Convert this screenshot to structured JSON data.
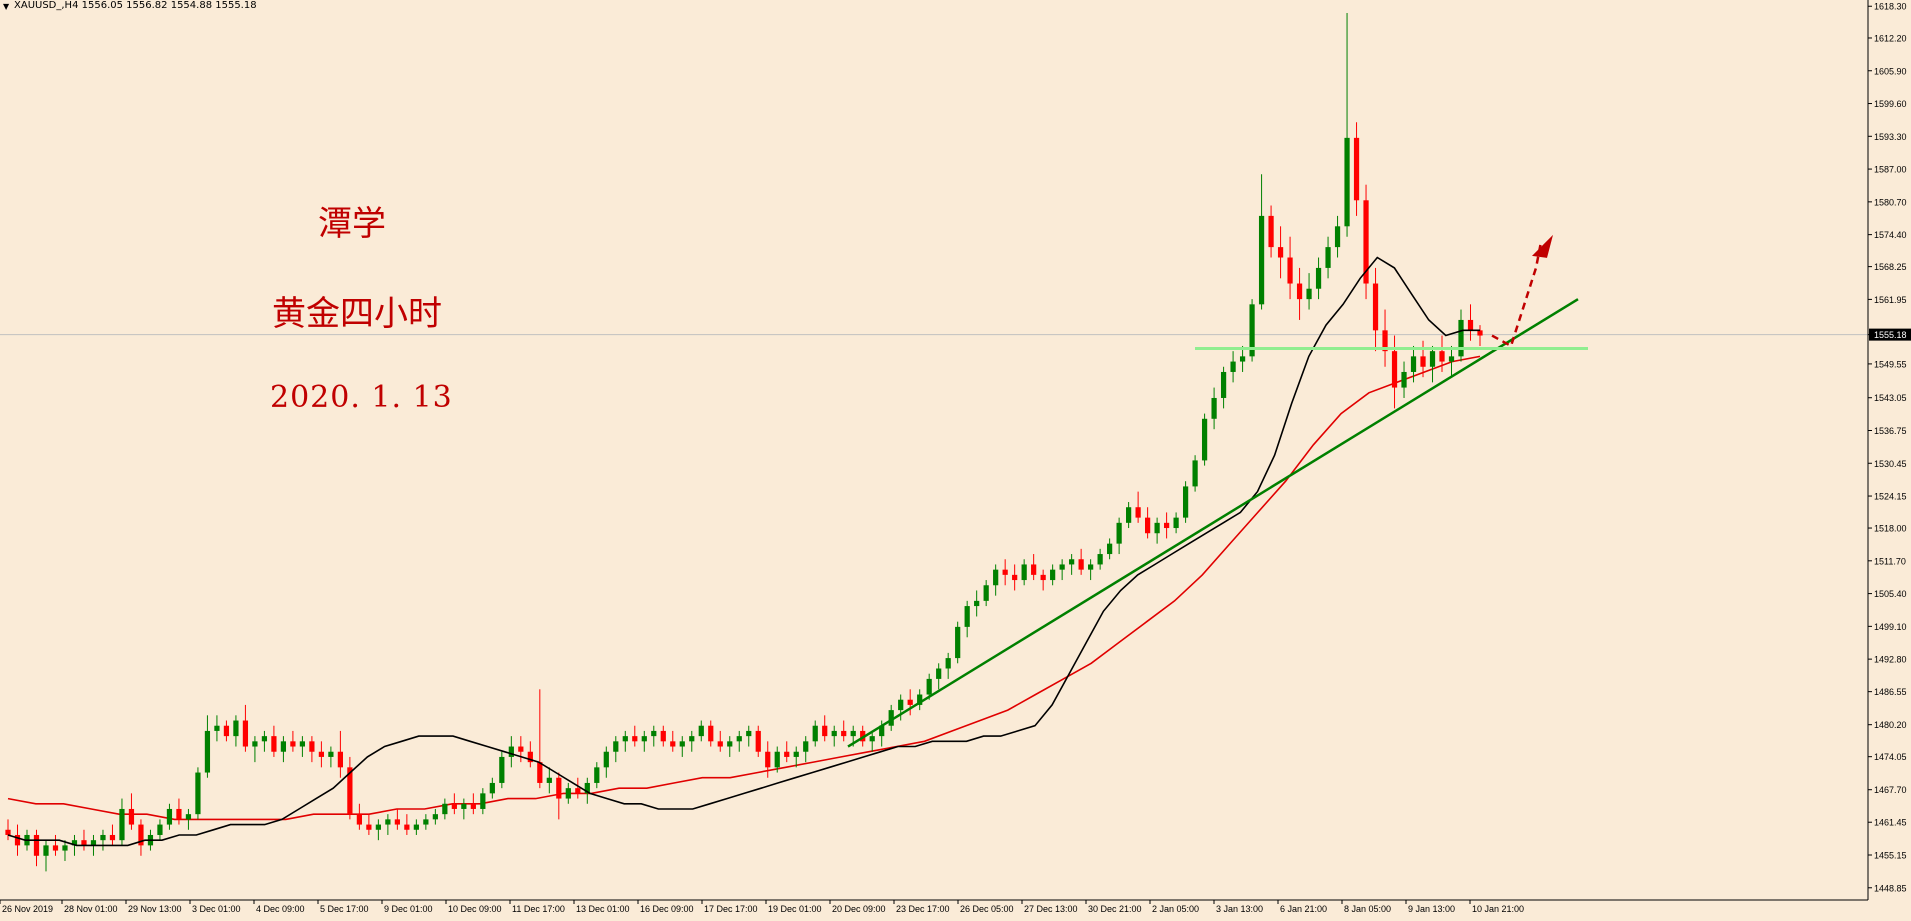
{
  "header": {
    "symbol": "XAUUSD_,H4",
    "ohlc": "1556.05 1556.82 1554.88 1555.18"
  },
  "annotations": {
    "author": "潭学",
    "subtitle": "黄金四小时",
    "date": "2020. 1. 13"
  },
  "colors": {
    "background": "#faebd7",
    "bull": "#008000",
    "bear": "#ff0000",
    "ma_fast": "#000000",
    "ma_slow": "#e00000",
    "trendline": "#008000",
    "support": "#90ee90",
    "arrow": "#c00000",
    "price_line": "#c0c0c0"
  },
  "chart_data": {
    "type": "candlestick",
    "symbol": "XAUUSD",
    "timeframe": "H4",
    "ylim": [
      1446.5,
      1619.5
    ],
    "y_ticks": [
      "1618.30",
      "1612.20",
      "1605.90",
      "1599.60",
      "1593.30",
      "1587.00",
      "1580.70",
      "1574.40",
      "1568.25",
      "1561.95",
      "1555.18",
      "1549.55",
      "1543.05",
      "1536.75",
      "1530.45",
      "1524.15",
      "1518.00",
      "1511.70",
      "1505.40",
      "1499.10",
      "1492.80",
      "1486.55",
      "1480.20",
      "1474.05",
      "1467.70",
      "1461.45",
      "1455.15",
      "1448.85"
    ],
    "current_price": "1555.18",
    "x_labels": [
      "26 Nov 2019",
      "28 Nov 01:00",
      "29 Nov 13:00",
      "3 Dec 01:00",
      "4 Dec 09:00",
      "5 Dec 17:00",
      "9 Dec 01:00",
      "10 Dec 09:00",
      "11 Dec 17:00",
      "13 Dec 01:00",
      "16 Dec 09:00",
      "17 Dec 17:00",
      "19 Dec 01:00",
      "20 Dec 09:00",
      "23 Dec 17:00",
      "26 Dec 05:00",
      "27 Dec 13:00",
      "30 Dec 21:00",
      "2 Jan 05:00",
      "3 Jan 13:00",
      "6 Jan 21:00",
      "8 Jan 05:00",
      "9 Jan 13:00",
      "10 Jan 21:00"
    ],
    "candles": [
      [
        1460,
        1462,
        1458,
        1459
      ],
      [
        1459,
        1461,
        1455,
        1457
      ],
      [
        1457,
        1460,
        1456,
        1459
      ],
      [
        1459,
        1460,
        1453,
        1455
      ],
      [
        1455,
        1458,
        1452,
        1457
      ],
      [
        1457,
        1459,
        1455,
        1456
      ],
      [
        1456,
        1458,
        1454,
        1457
      ],
      [
        1457,
        1459,
        1455,
        1458
      ],
      [
        1458,
        1460,
        1456,
        1457
      ],
      [
        1457,
        1459,
        1455,
        1458
      ],
      [
        1458,
        1460,
        1456,
        1459
      ],
      [
        1459,
        1461,
        1457,
        1458
      ],
      [
        1458,
        1466,
        1457,
        1464
      ],
      [
        1464,
        1467,
        1460,
        1461
      ],
      [
        1461,
        1462,
        1455,
        1457
      ],
      [
        1457,
        1460,
        1456,
        1459
      ],
      [
        1459,
        1462,
        1458,
        1461
      ],
      [
        1461,
        1465,
        1460,
        1464
      ],
      [
        1464,
        1466,
        1461,
        1462
      ],
      [
        1462,
        1464,
        1460,
        1463
      ],
      [
        1463,
        1472,
        1462,
        1471
      ],
      [
        1471,
        1482,
        1470,
        1479
      ],
      [
        1479,
        1482,
        1477,
        1480
      ],
      [
        1480,
        1481,
        1477,
        1478
      ],
      [
        1478,
        1482,
        1476,
        1481
      ],
      [
        1481,
        1484,
        1475,
        1476
      ],
      [
        1476,
        1478,
        1473,
        1477
      ],
      [
        1477,
        1479,
        1475,
        1478
      ],
      [
        1478,
        1480,
        1474,
        1475
      ],
      [
        1475,
        1478,
        1473,
        1477
      ],
      [
        1477,
        1479,
        1475,
        1476
      ],
      [
        1476,
        1478,
        1474,
        1477
      ],
      [
        1477,
        1478,
        1473,
        1475
      ],
      [
        1475,
        1477,
        1472,
        1474
      ],
      [
        1474,
        1476,
        1472,
        1475
      ],
      [
        1475,
        1479,
        1470,
        1472
      ],
      [
        1472,
        1474,
        1462,
        1463
      ],
      [
        1463,
        1465,
        1460,
        1461
      ],
      [
        1461,
        1463,
        1459,
        1460
      ],
      [
        1460,
        1462,
        1458,
        1461
      ],
      [
        1461,
        1463,
        1459,
        1462
      ],
      [
        1462,
        1464,
        1460,
        1461
      ],
      [
        1461,
        1463,
        1459,
        1460
      ],
      [
        1460,
        1462,
        1459,
        1461
      ],
      [
        1461,
        1463,
        1460,
        1462
      ],
      [
        1462,
        1464,
        1461,
        1463
      ],
      [
        1463,
        1466,
        1462,
        1465
      ],
      [
        1465,
        1467,
        1463,
        1464
      ],
      [
        1464,
        1466,
        1462,
        1465
      ],
      [
        1465,
        1467,
        1463,
        1464
      ],
      [
        1464,
        1468,
        1463,
        1467
      ],
      [
        1467,
        1470,
        1466,
        1469
      ],
      [
        1469,
        1475,
        1468,
        1474
      ],
      [
        1474,
        1478,
        1472,
        1476
      ],
      [
        1476,
        1478,
        1473,
        1475
      ],
      [
        1475,
        1477,
        1472,
        1473
      ],
      [
        1473,
        1487,
        1468,
        1469
      ],
      [
        1469,
        1472,
        1467,
        1470
      ],
      [
        1470,
        1471,
        1462,
        1466
      ],
      [
        1466,
        1469,
        1465,
        1468
      ],
      [
        1468,
        1470,
        1466,
        1467
      ],
      [
        1467,
        1470,
        1465,
        1469
      ],
      [
        1469,
        1473,
        1468,
        1472
      ],
      [
        1472,
        1476,
        1470,
        1475
      ],
      [
        1475,
        1478,
        1473,
        1477
      ],
      [
        1477,
        1479,
        1475,
        1478
      ],
      [
        1478,
        1480,
        1476,
        1477
      ],
      [
        1477,
        1479,
        1475,
        1478
      ],
      [
        1478,
        1480,
        1476,
        1479
      ],
      [
        1479,
        1480,
        1476,
        1477
      ],
      [
        1477,
        1479,
        1475,
        1476
      ],
      [
        1476,
        1478,
        1474,
        1477
      ],
      [
        1477,
        1479,
        1475,
        1478
      ],
      [
        1478,
        1481,
        1477,
        1480
      ],
      [
        1480,
        1481,
        1476,
        1477
      ],
      [
        1477,
        1479,
        1475,
        1476
      ],
      [
        1476,
        1478,
        1474,
        1477
      ],
      [
        1477,
        1479,
        1475,
        1478
      ],
      [
        1478,
        1480,
        1476,
        1479
      ],
      [
        1479,
        1480,
        1474,
        1475
      ],
      [
        1475,
        1477,
        1470,
        1472
      ],
      [
        1472,
        1476,
        1471,
        1475
      ],
      [
        1475,
        1477,
        1473,
        1474
      ],
      [
        1474,
        1476,
        1472,
        1475
      ],
      [
        1475,
        1478,
        1473,
        1477
      ],
      [
        1477,
        1481,
        1476,
        1480
      ],
      [
        1480,
        1482,
        1477,
        1478
      ],
      [
        1478,
        1480,
        1476,
        1479
      ],
      [
        1479,
        1481,
        1477,
        1478
      ],
      [
        1478,
        1480,
        1476,
        1479
      ],
      [
        1479,
        1480,
        1476,
        1477
      ],
      [
        1477,
        1479,
        1475,
        1478
      ],
      [
        1478,
        1481,
        1476,
        1480
      ],
      [
        1480,
        1484,
        1479,
        1483
      ],
      [
        1483,
        1486,
        1481,
        1485
      ],
      [
        1485,
        1487,
        1482,
        1484
      ],
      [
        1484,
        1487,
        1483,
        1486
      ],
      [
        1486,
        1490,
        1485,
        1489
      ],
      [
        1489,
        1492,
        1487,
        1491
      ],
      [
        1491,
        1494,
        1489,
        1493
      ],
      [
        1493,
        1500,
        1492,
        1499
      ],
      [
        1499,
        1504,
        1497,
        1503
      ],
      [
        1503,
        1506,
        1501,
        1504
      ],
      [
        1504,
        1508,
        1503,
        1507
      ],
      [
        1507,
        1511,
        1505,
        1510
      ],
      [
        1510,
        1512,
        1507,
        1509
      ],
      [
        1509,
        1511,
        1506,
        1508
      ],
      [
        1508,
        1512,
        1507,
        1511
      ],
      [
        1511,
        1513,
        1508,
        1509
      ],
      [
        1509,
        1510,
        1506,
        1508
      ],
      [
        1508,
        1511,
        1507,
        1510
      ],
      [
        1510,
        1512,
        1508,
        1511
      ],
      [
        1511,
        1513,
        1509,
        1512
      ],
      [
        1512,
        1514,
        1509,
        1510
      ],
      [
        1510,
        1512,
        1508,
        1511
      ],
      [
        1511,
        1514,
        1510,
        1513
      ],
      [
        1513,
        1516,
        1512,
        1515
      ],
      [
        1515,
        1520,
        1513,
        1519
      ],
      [
        1519,
        1523,
        1518,
        1522
      ],
      [
        1522,
        1525,
        1519,
        1520
      ],
      [
        1520,
        1522,
        1516,
        1517
      ],
      [
        1517,
        1520,
        1515,
        1519
      ],
      [
        1519,
        1521,
        1516,
        1518
      ],
      [
        1518,
        1521,
        1517,
        1520
      ],
      [
        1520,
        1527,
        1519,
        1526
      ],
      [
        1526,
        1532,
        1525,
        1531
      ],
      [
        1531,
        1540,
        1530,
        1539
      ],
      [
        1539,
        1545,
        1537,
        1543
      ],
      [
        1543,
        1549,
        1541,
        1548
      ],
      [
        1548,
        1552,
        1546,
        1550
      ],
      [
        1550,
        1553,
        1548,
        1551
      ],
      [
        1551,
        1562,
        1550,
        1561
      ],
      [
        1561,
        1586,
        1560,
        1578
      ],
      [
        1578,
        1580,
        1570,
        1572
      ],
      [
        1572,
        1576,
        1566,
        1570
      ],
      [
        1570,
        1574,
        1562,
        1565
      ],
      [
        1565,
        1568,
        1558,
        1562
      ],
      [
        1562,
        1567,
        1560,
        1564
      ],
      [
        1564,
        1570,
        1562,
        1568
      ],
      [
        1568,
        1574,
        1566,
        1572
      ],
      [
        1572,
        1578,
        1570,
        1576
      ],
      [
        1576,
        1617,
        1574,
        1593
      ],
      [
        1593,
        1596,
        1578,
        1581
      ],
      [
        1581,
        1584,
        1562,
        1565
      ],
      [
        1565,
        1568,
        1552,
        1556
      ],
      [
        1556,
        1560,
        1549,
        1552
      ],
      [
        1552,
        1555,
        1541,
        1545
      ],
      [
        1545,
        1550,
        1543,
        1548
      ],
      [
        1548,
        1553,
        1546,
        1551
      ],
      [
        1551,
        1554,
        1547,
        1549
      ],
      [
        1549,
        1553,
        1546,
        1552
      ],
      [
        1552,
        1555,
        1548,
        1550
      ],
      [
        1550,
        1553,
        1547,
        1551
      ],
      [
        1551,
        1560,
        1550,
        1558
      ],
      [
        1558,
        1561,
        1554,
        1556
      ],
      [
        1556,
        1557,
        1553,
        1555
      ]
    ],
    "ma_fast": [
      1459,
      1458,
      1458,
      1458,
      1457,
      1457,
      1457,
      1457,
      1458,
      1458,
      1459,
      1459,
      1460,
      1461,
      1461,
      1461,
      1462,
      1464,
      1466,
      1468,
      1471,
      1474,
      1476,
      1477,
      1478,
      1478,
      1478,
      1477,
      1476,
      1475,
      1474,
      1473,
      1471,
      1469,
      1467,
      1466,
      1465,
      1465,
      1464,
      1464,
      1464,
      1465,
      1466,
      1467,
      1468,
      1469,
      1470,
      1471,
      1472,
      1473,
      1474,
      1475,
      1476,
      1476,
      1477,
      1477,
      1477,
      1478,
      1478,
      1479,
      1480,
      1484,
      1490,
      1496,
      1502,
      1506,
      1509,
      1511,
      1513,
      1515,
      1517,
      1519,
      1521,
      1525,
      1532,
      1542,
      1551,
      1557,
      1561,
      1566,
      1570,
      1568,
      1563,
      1558,
      1555,
      1556,
      1556
    ],
    "ma_slow": [
      1466,
      1465,
      1465,
      1464,
      1463,
      1463,
      1462,
      1462,
      1462,
      1462,
      1462,
      1463,
      1463,
      1463,
      1464,
      1464,
      1465,
      1465,
      1466,
      1466,
      1467,
      1467,
      1468,
      1468,
      1469,
      1470,
      1470,
      1471,
      1472,
      1473,
      1474,
      1475,
      1476,
      1477,
      1479,
      1481,
      1483,
      1486,
      1489,
      1492,
      1496,
      1500,
      1504,
      1509,
      1515,
      1521,
      1527,
      1534,
      1540,
      1544,
      1546,
      1548,
      1550,
      1551
    ]
  }
}
